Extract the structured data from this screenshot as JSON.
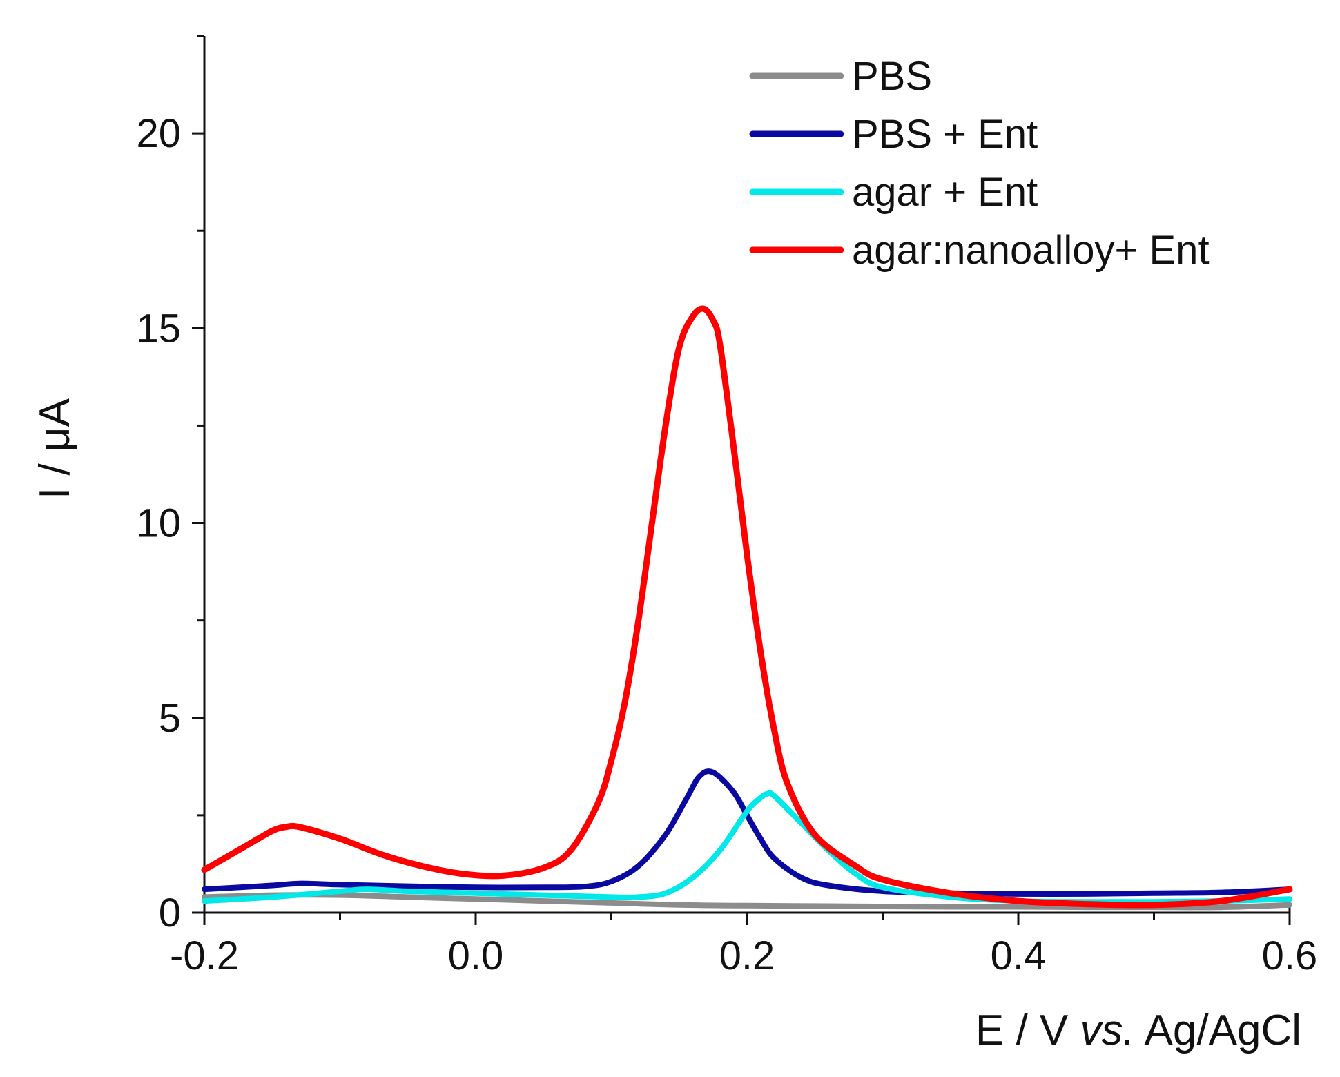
{
  "chart_data": {
    "type": "line",
    "title": "",
    "xlabel": {
      "prefix": "E / V ",
      "italic": "vs.",
      "suffix": " Ag/AgCl"
    },
    "ylabel": "I / μA",
    "xlim": [
      -0.2,
      0.6
    ],
    "ylim": [
      0,
      22.5
    ],
    "xticks": [
      -0.2,
      0.0,
      0.2,
      0.4,
      0.6
    ],
    "xtick_labels": [
      "-0.2",
      "0.0",
      "0.2",
      "0.4",
      "0.6"
    ],
    "yticks": [
      0,
      5,
      10,
      15,
      20
    ],
    "ytick_labels": [
      "0",
      "5",
      "10",
      "15",
      "20"
    ],
    "grid": false,
    "legend_position": "top-right",
    "series": [
      {
        "name": "PBS",
        "color": "#8c8c8c",
        "x": [
          -0.2,
          -0.15,
          -0.1,
          -0.05,
          0.0,
          0.05,
          0.1,
          0.15,
          0.2,
          0.25,
          0.3,
          0.35,
          0.4,
          0.45,
          0.5,
          0.55,
          0.6
        ],
        "y": [
          0.4,
          0.45,
          0.45,
          0.4,
          0.35,
          0.3,
          0.25,
          0.2,
          0.18,
          0.17,
          0.16,
          0.15,
          0.15,
          0.14,
          0.14,
          0.14,
          0.2
        ]
      },
      {
        "name": "PBS + Ent",
        "color": "#0a0aa0",
        "x": [
          -0.2,
          -0.15,
          -0.13,
          -0.1,
          -0.05,
          0.0,
          0.05,
          0.08,
          0.1,
          0.12,
          0.14,
          0.155,
          0.165,
          0.175,
          0.19,
          0.2,
          0.21,
          0.22,
          0.24,
          0.26,
          0.3,
          0.35,
          0.4,
          0.45,
          0.5,
          0.55,
          0.6
        ],
        "y": [
          0.6,
          0.7,
          0.75,
          0.72,
          0.68,
          0.65,
          0.65,
          0.67,
          0.8,
          1.2,
          2.0,
          2.9,
          3.5,
          3.6,
          3.1,
          2.5,
          1.9,
          1.4,
          0.9,
          0.7,
          0.55,
          0.5,
          0.48,
          0.48,
          0.5,
          0.52,
          0.6
        ]
      },
      {
        "name": "agar + Ent",
        "color": "#00e8e8",
        "x": [
          -0.2,
          -0.15,
          -0.1,
          -0.08,
          -0.05,
          0.0,
          0.05,
          0.1,
          0.12,
          0.14,
          0.16,
          0.18,
          0.2,
          0.21,
          0.215,
          0.22,
          0.24,
          0.26,
          0.28,
          0.3,
          0.35,
          0.4,
          0.45,
          0.5,
          0.55,
          0.6
        ],
        "y": [
          0.3,
          0.4,
          0.55,
          0.6,
          0.55,
          0.5,
          0.45,
          0.4,
          0.4,
          0.5,
          0.9,
          1.6,
          2.6,
          2.95,
          3.05,
          3.0,
          2.3,
          1.6,
          1.0,
          0.65,
          0.4,
          0.3,
          0.28,
          0.28,
          0.3,
          0.35
        ]
      },
      {
        "name": "agar:nanoalloy+ Ent",
        "color": "#ff0000",
        "x": [
          -0.2,
          -0.17,
          -0.15,
          -0.14,
          -0.13,
          -0.1,
          -0.07,
          -0.04,
          -0.01,
          0.02,
          0.05,
          0.07,
          0.09,
          0.1,
          0.11,
          0.12,
          0.13,
          0.14,
          0.15,
          0.16,
          0.168,
          0.175,
          0.18,
          0.19,
          0.2,
          0.21,
          0.22,
          0.23,
          0.25,
          0.28,
          0.3,
          0.35,
          0.4,
          0.45,
          0.5,
          0.55,
          0.6
        ],
        "y": [
          1.1,
          1.7,
          2.1,
          2.2,
          2.2,
          1.9,
          1.5,
          1.2,
          1.0,
          0.95,
          1.15,
          1.6,
          2.8,
          3.9,
          5.4,
          7.5,
          10.0,
          12.5,
          14.5,
          15.3,
          15.5,
          15.2,
          14.6,
          12.0,
          9.2,
          6.7,
          4.7,
          3.3,
          2.0,
          1.2,
          0.85,
          0.5,
          0.3,
          0.22,
          0.2,
          0.3,
          0.6
        ]
      }
    ]
  }
}
